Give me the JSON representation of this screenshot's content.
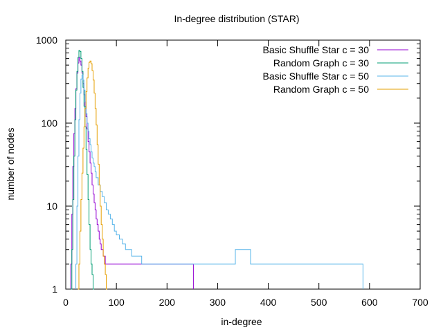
{
  "chart_data": {
    "type": "line",
    "title": "In-degree distribution (STAR)",
    "xlabel": "in-degree",
    "ylabel": "number of nodes",
    "xlim": [
      0,
      700
    ],
    "ylim": [
      1,
      1000
    ],
    "y_scale": "log",
    "x_ticks": [
      0,
      100,
      200,
      300,
      400,
      500,
      600,
      700
    ],
    "y_ticks": [
      1,
      10,
      100,
      1000
    ],
    "x_tick_labels": [
      "0",
      "100",
      "200",
      "300",
      "400",
      "500",
      "600",
      "700"
    ],
    "y_tick_labels": [
      "1",
      "10",
      "100",
      "1000"
    ],
    "legend_position": "top-right",
    "grid": false,
    "series": [
      {
        "name": "Basic Shuffle Star c = 30",
        "color": "#9400d3",
        "x": [
          10,
          12,
          14,
          16,
          18,
          20,
          22,
          24,
          26,
          28,
          30,
          32,
          34,
          36,
          38,
          40,
          42,
          44,
          46,
          48,
          50,
          52,
          54,
          56,
          58,
          60,
          62,
          64,
          66,
          68,
          70,
          72,
          74,
          76,
          78,
          80,
          82,
          84,
          88,
          92,
          96,
          100,
          105,
          110,
          115,
          120,
          128,
          136,
          150,
          165,
          185,
          215,
          250
        ],
        "y": [
          2,
          8,
          30,
          75,
          150,
          260,
          400,
          530,
          620,
          560,
          500,
          400,
          300,
          220,
          160,
          120,
          85,
          60,
          45,
          33,
          25,
          18,
          14,
          11,
          9,
          7,
          6,
          5,
          4,
          3.5,
          3,
          3,
          2.5,
          2.5,
          2,
          2,
          2,
          2,
          2,
          2,
          2,
          2,
          2,
          2,
          2,
          2,
          2,
          2,
          2,
          2,
          2,
          2,
          2
        ]
      },
      {
        "name": "Random Graph c = 30",
        "color": "#009e73",
        "x": [
          10,
          12,
          14,
          16,
          18,
          20,
          22,
          24,
          26,
          28,
          30,
          32,
          34,
          36,
          38,
          40,
          42,
          44,
          46,
          48,
          50,
          52,
          54
        ],
        "y": [
          1,
          3,
          12,
          40,
          110,
          250,
          420,
          620,
          750,
          730,
          600,
          420,
          270,
          160,
          90,
          48,
          24,
          12,
          6,
          3,
          2,
          1.5,
          1
        ]
      },
      {
        "name": "Basic Shuffle Star c = 50",
        "color": "#56b4e9",
        "x": [
          20,
          22,
          24,
          26,
          28,
          30,
          32,
          34,
          36,
          38,
          40,
          42,
          44,
          46,
          48,
          50,
          52,
          54,
          56,
          58,
          60,
          64,
          68,
          72,
          76,
          80,
          84,
          88,
          92,
          96,
          100,
          106,
          112,
          118,
          124,
          130,
          140,
          150,
          160,
          170,
          180,
          195,
          210,
          230,
          260,
          335,
          365,
          585
        ],
        "y": [
          2,
          10,
          40,
          110,
          230,
          340,
          380,
          330,
          250,
          180,
          130,
          100,
          80,
          65,
          55,
          45,
          38,
          33,
          30,
          26,
          22,
          18,
          15,
          13,
          11,
          9,
          8,
          7,
          6,
          5,
          4.5,
          4,
          3.5,
          3,
          3,
          2.5,
          2.5,
          2,
          2,
          2,
          2,
          2,
          2,
          2,
          2,
          3,
          2,
          2
        ]
      },
      {
        "name": "Random Graph c = 50",
        "color": "#e69f00",
        "x": [
          24,
          26,
          28,
          30,
          32,
          34,
          36,
          38,
          40,
          42,
          44,
          46,
          48,
          50,
          52,
          54,
          56,
          58,
          60,
          62,
          64,
          66,
          68,
          70,
          72,
          74,
          76,
          78,
          80
        ],
        "y": [
          1,
          2,
          5,
          12,
          25,
          50,
          90,
          150,
          240,
          350,
          460,
          540,
          560,
          520,
          430,
          330,
          230,
          150,
          95,
          55,
          32,
          18,
          10,
          6,
          4,
          2.5,
          2,
          1.5,
          1
        ]
      }
    ]
  }
}
